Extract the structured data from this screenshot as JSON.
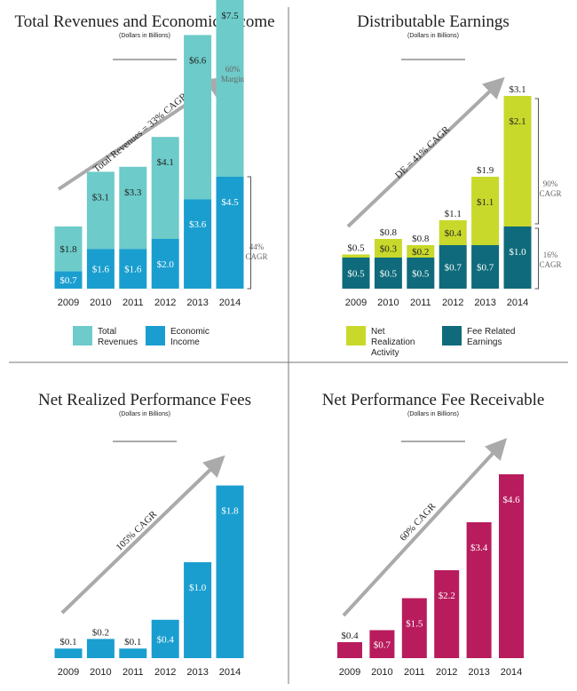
{
  "colors": {
    "teal_light": "#6dcbc9",
    "blue": "#1a9ecf",
    "lime": "#c8d92b",
    "dark_teal": "#0f6b7b",
    "magenta": "#b81c5c",
    "arrow": "#aaaaaa",
    "divider": "#777777",
    "text": "#222222",
    "annotation": "#666666"
  },
  "chart_data": [
    {
      "id": "revenues",
      "type": "bar",
      "stacked": true,
      "title": "Total Revenues and Economic Income",
      "subtitle": "(Dollars in Billions)",
      "categories": [
        "2009",
        "2010",
        "2011",
        "2012",
        "2013",
        "2014"
      ],
      "series": [
        {
          "name": "Economic Income",
          "color_key": "blue",
          "values": [
            0.7,
            1.6,
            1.6,
            2.0,
            3.6,
            4.5
          ],
          "labels": [
            "$0.7",
            "$1.6",
            "$1.6",
            "$2.0",
            "$3.6",
            "$4.5"
          ]
        },
        {
          "name": "Total Revenues",
          "color_key": "teal_light",
          "values": [
            1.8,
            3.1,
            3.3,
            4.1,
            6.6,
            7.5
          ],
          "labels": [
            "$1.8",
            "$3.1",
            "$3.3",
            "$4.1",
            "$6.6",
            "$7.5"
          ]
        }
      ],
      "legend": [
        {
          "label": "Total Revenues",
          "lines": [
            "Total",
            "Revenues"
          ],
          "color_key": "teal_light"
        },
        {
          "label": "Economic Income",
          "lines": [
            "Economic",
            "Income"
          ],
          "color_key": "blue"
        }
      ],
      "trend_label": "Total Revenues = 33% CAGR",
      "annotations": {
        "top": [
          "60%",
          "Margin"
        ],
        "bracket": [
          "44%",
          "CAGR"
        ]
      }
    },
    {
      "id": "distributable",
      "type": "bar",
      "stacked": true,
      "title": "Distributable Earnings",
      "subtitle": "(Dollars in Billions)",
      "categories": [
        "2009",
        "2010",
        "2011",
        "2012",
        "2013",
        "2014"
      ],
      "series": [
        {
          "name": "Fee Related Earnings",
          "color_key": "dark_teal",
          "values": [
            0.5,
            0.5,
            0.5,
            0.7,
            0.7,
            1.0
          ],
          "labels": [
            "$0.5",
            "$0.5",
            "$0.5",
            "$0.7",
            "$0.7",
            "$1.0"
          ]
        },
        {
          "name": "Net Realization Activity",
          "color_key": "lime",
          "values": [
            0.05,
            0.3,
            0.2,
            0.4,
            1.1,
            2.1
          ],
          "labels": [
            "",
            "$0.3",
            "$0.2",
            "$0.4",
            "$1.1",
            "$2.1"
          ]
        }
      ],
      "totals": [
        "$0.5",
        "$0.8",
        "$0.8",
        "$1.1",
        "$1.9",
        "$3.1"
      ],
      "legend": [
        {
          "label": "Net Realization Activity",
          "lines": [
            "Net",
            "Realization",
            "Activity"
          ],
          "color_key": "lime"
        },
        {
          "label": "Fee Related Earnings",
          "lines": [
            "Fee Related",
            "Earnings"
          ],
          "color_key": "dark_teal"
        }
      ],
      "trend_label": "DE = 41% CAGR",
      "annotations": {
        "bracket_top": [
          "90%",
          "CAGR"
        ],
        "bracket_bottom": [
          "16%",
          "CAGR"
        ]
      }
    },
    {
      "id": "realized_fees",
      "type": "bar",
      "title": "Net Realized Performance Fees",
      "subtitle": "(Dollars in Billions)",
      "categories": [
        "2009",
        "2010",
        "2011",
        "2012",
        "2013",
        "2014"
      ],
      "series": [
        {
          "name": "Net Realized Performance Fees",
          "color_key": "blue",
          "values": [
            0.1,
            0.2,
            0.1,
            0.4,
            1.0,
            1.8
          ],
          "labels": [
            "$0.1",
            "$0.2",
            "$0.1",
            "$0.4",
            "$1.0",
            "$1.8"
          ]
        }
      ],
      "trend_label": "105% CAGR"
    },
    {
      "id": "fee_receivable",
      "type": "bar",
      "title": "Net Performance Fee Receivable",
      "subtitle": "(Dollars in Billions)",
      "categories": [
        "2009",
        "2010",
        "2011",
        "2012",
        "2013",
        "2014"
      ],
      "series": [
        {
          "name": "Net Performance Fee Receivable",
          "color_key": "magenta",
          "values": [
            0.4,
            0.7,
            1.5,
            2.2,
            3.4,
            4.6
          ],
          "labels": [
            "$0.4",
            "$0.7",
            "$1.5",
            "$2.2",
            "$3.4",
            "$4.6"
          ]
        }
      ],
      "trend_label": "60% CAGR"
    }
  ]
}
